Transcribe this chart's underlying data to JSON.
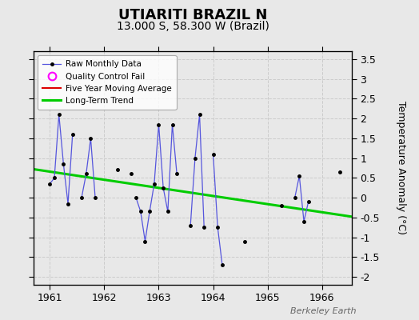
{
  "title": "UTIARITI BRAZIL N",
  "subtitle": "13.000 S, 58.300 W (Brazil)",
  "ylabel_right": "Temperature Anomaly (°C)",
  "watermark": "Berkeley Earth",
  "background_color": "#e8e8e8",
  "plot_bg_color": "#e8e8e8",
  "ylim": [
    -2.2,
    3.7
  ],
  "yticks": [
    -2,
    -1.5,
    -1,
    -0.5,
    0,
    0.5,
    1,
    1.5,
    2,
    2.5,
    3,
    3.5
  ],
  "xlim": [
    1960.7,
    1966.55
  ],
  "xticks": [
    1961,
    1962,
    1963,
    1964,
    1965,
    1966
  ],
  "segments_x": [
    [
      1961.0,
      1961.083,
      1961.167,
      1961.25,
      1961.333,
      1961.417
    ],
    [
      1961.583,
      1961.667,
      1961.75,
      1961.833
    ],
    [
      1962.583,
      1962.667,
      1962.75,
      1962.833,
      1962.917,
      1963.0,
      1963.083,
      1963.167,
      1963.25,
      1963.333
    ],
    [
      1963.583,
      1963.667,
      1963.75,
      1963.833
    ],
    [
      1964.0,
      1964.083,
      1964.167
    ],
    [
      1965.5,
      1965.583,
      1965.667,
      1965.75
    ]
  ],
  "segments_y": [
    [
      0.35,
      0.5,
      2.1,
      0.85,
      -0.15,
      1.6
    ],
    [
      0.0,
      0.6,
      1.5,
      0.0
    ],
    [
      0.0,
      -0.35,
      -1.1,
      -0.35,
      0.35,
      1.85,
      0.25,
      -0.35,
      1.85,
      0.6
    ],
    [
      -0.7,
      1.0,
      2.1,
      -0.75
    ],
    [
      1.1,
      -0.75,
      -1.7
    ],
    [
      0.0,
      0.55,
      -0.6,
      -0.1
    ]
  ],
  "isolated_x": [
    1962.25,
    1962.5,
    1964.583,
    1965.25,
    1966.333
  ],
  "isolated_y": [
    0.7,
    0.6,
    -1.1,
    -0.2,
    0.65
  ],
  "trend_x": [
    1960.7,
    1966.55
  ],
  "trend_y": [
    0.72,
    -0.48
  ],
  "line_color": "#5555dd",
  "marker_color": "#000000",
  "trend_color": "#00cc00",
  "mavg_color": "#dd0000",
  "qc_color": "#ff00ff",
  "legend_bg": "#ffffff",
  "grid_color": "#cccccc",
  "title_fontsize": 13,
  "subtitle_fontsize": 10,
  "tick_fontsize": 9,
  "watermark_fontsize": 8
}
